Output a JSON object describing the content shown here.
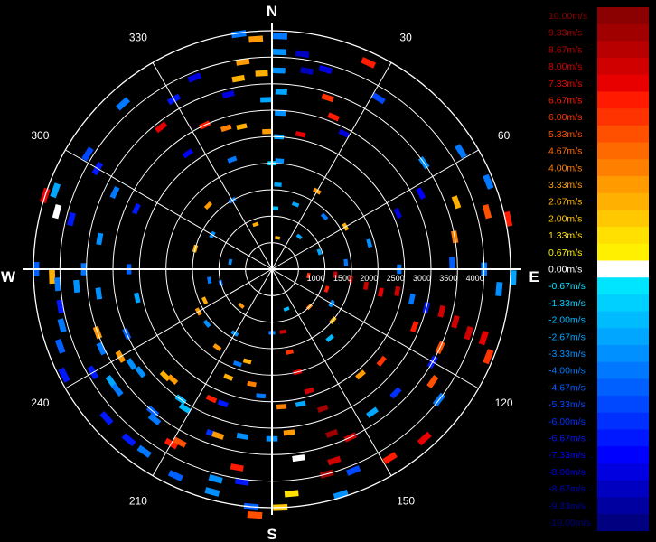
{
  "chart_data": {
    "type": "polar-radar",
    "compass": {
      "north": "N",
      "east": "E",
      "south": "S",
      "west": "W"
    },
    "azimuth_labels": [
      "30",
      "60",
      "120",
      "150",
      "210",
      "240",
      "300",
      "330"
    ],
    "azimuths_deg": [
      30,
      60,
      120,
      150,
      210,
      240,
      300,
      330
    ],
    "range_rings": [
      500,
      1000,
      1500,
      2000,
      2500,
      3000,
      3500,
      4000,
      4500
    ],
    "range_labels": [
      "1000",
      "1500",
      "2000",
      "2500",
      "3000",
      "3500",
      "4000"
    ],
    "grid": true,
    "legend_position": "right",
    "colorbar": {
      "labels": [
        "10.00m/s",
        "9.33m/s",
        "8.67m/s",
        "8.00m/s",
        "7.33m/s",
        "6.67m/s",
        "6.00m/s",
        "5.33m/s",
        "4.67m/s",
        "4.00m/s",
        "3.33m/s",
        "2.67m/s",
        "2.00m/s",
        "1.33m/s",
        "0.67m/s",
        "0.00m/s",
        "-0.67m/s",
        "-1.33m/s",
        "-2.00m/s",
        "-2.67m/s",
        "-3.33m/s",
        "-4.00m/s",
        "-4.67m/s",
        "-5.33m/s",
        "-6.00m/s",
        "-6.67m/s",
        "-7.33m/s",
        "-8.00m/s",
        "-8.67m/s",
        "-9.33m/s",
        "-10.00m/s"
      ],
      "colors": [
        "#8b0000",
        "#a00000",
        "#b80000",
        "#d00000",
        "#e80000",
        "#ff1a00",
        "#ff3300",
        "#ff5000",
        "#ff6a00",
        "#ff8000",
        "#ff9a00",
        "#ffb000",
        "#ffc800",
        "#ffe000",
        "#fff000",
        "#ffffff",
        "#00e5ff",
        "#00d0ff",
        "#00bcff",
        "#00a6ff",
        "#0090ff",
        "#0078ff",
        "#0060ff",
        "#0048ff",
        "#0030ff",
        "#0018ff",
        "#0000ff",
        "#0000e0",
        "#0000c0",
        "#0000a0",
        "#000080"
      ]
    },
    "echoes": [
      {
        "az": 2,
        "r": 4400,
        "v": -4.0
      },
      {
        "az": 2,
        "r": 4100,
        "v": -3.5
      },
      {
        "az": 2,
        "r": 3750,
        "v": -3.3
      },
      {
        "az": 3,
        "r": 3350,
        "v": -3.0
      },
      {
        "az": 3,
        "r": 2950,
        "v": -3.3
      },
      {
        "az": 3,
        "r": 2500,
        "v": -2.7
      },
      {
        "az": 4,
        "r": 2050,
        "v": -3.3
      },
      {
        "az": 4,
        "r": 1600,
        "v": -2.7
      },
      {
        "az": 3,
        "r": 1150,
        "v": -2.0
      },
      {
        "az": -2,
        "r": 3200,
        "v": -2.7
      },
      {
        "az": -2,
        "r": 2600,
        "v": 3.3
      },
      {
        "az": 0,
        "r": 2000,
        "v": -1.3
      },
      {
        "az": -4,
        "r": 4350,
        "v": 3.3
      },
      {
        "az": -3,
        "r": 3700,
        "v": 2.7
      },
      {
        "az": 8,
        "r": 4100,
        "v": -8.7
      },
      {
        "az": -8,
        "r": 4480,
        "v": -4.0
      },
      {
        "az": -8,
        "r": 3950,
        "v": 3.3
      },
      {
        "az": -10,
        "r": 3650,
        "v": 2.7
      },
      {
        "az": -14,
        "r": 3400,
        "v": -8.0
      },
      {
        "az": -12,
        "r": 2750,
        "v": 2.7
      },
      {
        "az": 15,
        "r": 3900,
        "v": -8.0
      },
      {
        "az": 18,
        "r": 3400,
        "v": 6.0
      },
      {
        "az": 22,
        "r": 3100,
        "v": 6.7
      },
      {
        "az": 25,
        "r": 4300,
        "v": 6.7
      },
      {
        "az": -22,
        "r": 3900,
        "v": -8.0
      },
      {
        "az": -25,
        "r": 3000,
        "v": 6.7
      },
      {
        "az": -30,
        "r": 3700,
        "v": -6.7
      },
      {
        "az": -18,
        "r": 2800,
        "v": 4.0
      },
      {
        "az": -20,
        "r": 2200,
        "v": -4.0
      },
      {
        "az": 10,
        "r": 3800,
        "v": -8.7
      },
      {
        "az": 12,
        "r": 2600,
        "v": 7.3
      },
      {
        "az": 28,
        "r": 2900,
        "v": -8.0
      },
      {
        "az": 32,
        "r": 3800,
        "v": -5.3
      },
      {
        "az": -38,
        "r": 3400,
        "v": 7.3
      },
      {
        "az": -42,
        "r": 4200,
        "v": -4.0
      },
      {
        "az": -36,
        "r": 2700,
        "v": -7.3
      },
      {
        "az": 55,
        "r": 3500,
        "v": -3.3
      },
      {
        "az": 58,
        "r": 4200,
        "v": -4.0
      },
      {
        "az": 70,
        "r": 3700,
        "v": 2.7
      },
      {
        "az": 68,
        "r": 4400,
        "v": -4.0
      },
      {
        "az": 75,
        "r": 4200,
        "v": 5.3
      },
      {
        "az": 78,
        "r": 4550,
        "v": 6.7
      },
      {
        "az": 80,
        "r": 3500,
        "v": 4.0
      },
      {
        "az": 63,
        "r": 3150,
        "v": -7.3
      },
      {
        "az": 66,
        "r": 2600,
        "v": -8.0
      },
      {
        "az": -60,
        "r": 3800,
        "v": -6.7
      },
      {
        "az": -58,
        "r": 4100,
        "v": -5.3
      },
      {
        "az": -64,
        "r": 3300,
        "v": -4.0
      },
      {
        "az": -70,
        "r": 4350,
        "v": -2.7
      },
      {
        "az": -72,
        "r": 4500,
        "v": 7.3
      },
      {
        "az": -75,
        "r": 4200,
        "v": 0.0
      },
      {
        "az": -76,
        "r": 3900,
        "v": -6.7
      },
      {
        "az": -66,
        "r": 2800,
        "v": -6.7
      },
      {
        "az": -80,
        "r": 3300,
        "v": -3.3
      },
      {
        "az": -270,
        "r": 4000,
        "v": -4.0
      },
      {
        "az": -272,
        "r": 3400,
        "v": -4.7
      },
      {
        "az": -270,
        "r": 2400,
        "v": -4.0
      },
      {
        "az": -90,
        "r": 4450,
        "v": -4.7
      },
      {
        "az": -90,
        "r": 3550,
        "v": -4.0
      },
      {
        "az": -90,
        "r": 2700,
        "v": -4.7
      },
      {
        "az": -92,
        "r": 4150,
        "v": 2.7
      },
      {
        "az": -95,
        "r": 3700,
        "v": -3.3
      },
      {
        "az": -100,
        "r": 4050,
        "v": -6.7
      },
      {
        "az": -110,
        "r": 4250,
        "v": -4.7
      },
      {
        "az": -115,
        "r": 3550,
        "v": -4.0
      },
      {
        "az": -120,
        "r": 3300,
        "v": 3.3
      },
      {
        "az": -125,
        "r": 3700,
        "v": -2.7
      },
      {
        "az": -128,
        "r": 3150,
        "v": -3.3
      },
      {
        "az": -135,
        "r": 2850,
        "v": 2.7
      },
      {
        "az": -140,
        "r": 4200,
        "v": -6.7
      },
      {
        "az": -142,
        "r": 3600,
        "v": -4.0
      },
      {
        "az": -150,
        "r": 3800,
        "v": 6.7
      },
      {
        "az": -155,
        "r": 2700,
        "v": 6.7
      },
      {
        "az": -160,
        "r": 3300,
        "v": -6.0
      },
      {
        "az": -165,
        "r": 4350,
        "v": -3.3
      },
      {
        "az": -172,
        "r": 4050,
        "v": -6.7
      },
      {
        "az": -175,
        "r": 4500,
        "v": -4.7
      },
      {
        "az": -176,
        "r": 4650,
        "v": 5.3
      },
      {
        "az": -170,
        "r": 3200,
        "v": -3.3
      },
      {
        "az": -145,
        "r": 3000,
        "v": -2.0
      },
      {
        "az": -158,
        "r": 2200,
        "v": 2.7
      },
      {
        "az": 95,
        "r": 1200,
        "v": 8.0
      },
      {
        "az": 97,
        "r": 1500,
        "v": 8.0
      },
      {
        "az": 100,
        "r": 1800,
        "v": 8.0
      },
      {
        "az": 102,
        "r": 2100,
        "v": 7.3
      },
      {
        "az": 100,
        "r": 2400,
        "v": 8.0
      },
      {
        "az": 102,
        "r": 2700,
        "v": -4.0
      },
      {
        "az": 104,
        "r": 3000,
        "v": -6.7
      },
      {
        "az": 104,
        "r": 3300,
        "v": 8.0
      },
      {
        "az": 106,
        "r": 3600,
        "v": 8.0
      },
      {
        "az": 108,
        "r": 3900,
        "v": 8.0
      },
      {
        "az": 108,
        "r": 4200,
        "v": 7.3
      },
      {
        "az": 95,
        "r": 4300,
        "v": -3.3
      },
      {
        "az": 92,
        "r": 4550,
        "v": -2.7
      },
      {
        "az": 112,
        "r": 2900,
        "v": 6.7
      },
      {
        "az": 115,
        "r": 3500,
        "v": 5.3
      },
      {
        "az": 112,
        "r": 4400,
        "v": 6.0
      },
      {
        "az": 120,
        "r": 3500,
        "v": -6.7
      },
      {
        "az": 125,
        "r": 3700,
        "v": 5.3
      },
      {
        "az": 130,
        "r": 2700,
        "v": 6.0
      },
      {
        "az": 128,
        "r": 4000,
        "v": -4.0
      },
      {
        "az": 135,
        "r": 3300,
        "v": -6.0
      },
      {
        "az": 138,
        "r": 4300,
        "v": 7.3
      },
      {
        "az": 140,
        "r": 2600,
        "v": 3.3
      },
      {
        "az": 145,
        "r": 3300,
        "v": -2.7
      },
      {
        "az": 148,
        "r": 4200,
        "v": 6.7
      },
      {
        "az": 155,
        "r": 3500,
        "v": 8.0
      },
      {
        "az": 158,
        "r": 4100,
        "v": -5.3
      },
      {
        "az": 160,
        "r": 2800,
        "v": 9.3
      },
      {
        "az": 160,
        "r": 3300,
        "v": 9.3
      },
      {
        "az": 162,
        "r": 3800,
        "v": 8.0
      },
      {
        "az": 163,
        "r": 4450,
        "v": -3.3
      },
      {
        "az": 165,
        "r": 4000,
        "v": 9.3
      },
      {
        "az": 163,
        "r": 2400,
        "v": 8.0
      },
      {
        "az": 166,
        "r": 2000,
        "v": 7.3
      },
      {
        "az": 168,
        "r": 1600,
        "v": 6.0
      },
      {
        "az": 170,
        "r": 1200,
        "v": 8.0
      },
      {
        "az": 172,
        "r": 3600,
        "v": 0.0
      },
      {
        "az": 174,
        "r": 3100,
        "v": 3.3
      },
      {
        "az": 175,
        "r": 4250,
        "v": 1.3
      },
      {
        "az": 168,
        "r": 2600,
        "v": -2.7
      },
      {
        "az": 176,
        "r": 2600,
        "v": 4.0
      },
      {
        "az": 178,
        "r": 4500,
        "v": 2.0
      },
      {
        "az": 180,
        "r": 3200,
        "v": -3.3
      },
      {
        "az": 185,
        "r": 2400,
        "v": -4.0
      },
      {
        "az": 190,
        "r": 3800,
        "v": 6.7
      },
      {
        "az": 195,
        "r": 4100,
        "v": -3.3
      },
      {
        "az": 198,
        "r": 3300,
        "v": 3.3
      },
      {
        "az": 200,
        "r": 2700,
        "v": -6.7
      },
      {
        "az": 205,
        "r": 4300,
        "v": -4.7
      },
      {
        "az": 208,
        "r": 3700,
        "v": 5.3
      },
      {
        "az": 212,
        "r": 3100,
        "v": -2.0
      },
      {
        "az": 215,
        "r": 4200,
        "v": -4.0
      },
      {
        "az": 220,
        "r": 3500,
        "v": -4.7
      },
      {
        "az": 222,
        "r": 2800,
        "v": 3.3
      },
      {
        "az": 228,
        "r": 4200,
        "v": -6.7
      },
      {
        "az": 232,
        "r": 3700,
        "v": -4.0
      },
      {
        "az": 236,
        "r": 3200,
        "v": -3.3
      },
      {
        "az": 240,
        "r": 3900,
        "v": -6.7
      },
      {
        "az": 243,
        "r": 4400,
        "v": -6.7
      },
      {
        "az": 246,
        "r": 3000,
        "v": -4.7
      },
      {
        "az": 250,
        "r": 3500,
        "v": 3.3
      },
      {
        "az": 255,
        "r": 4100,
        "v": -4.0
      },
      {
        "az": 258,
        "r": 2600,
        "v": -2.7
      },
      {
        "az": 262,
        "r": 3300,
        "v": -3.3
      },
      {
        "az": 266,
        "r": 4050,
        "v": -4.0
      },
      {
        "az": 190,
        "r": 2200,
        "v": 4.0
      },
      {
        "az": 200,
        "r": 1900,
        "v": -4.0
      },
      {
        "az": 215,
        "r": 1800,
        "v": 3.3
      },
      {
        "az": 230,
        "r": 1600,
        "v": -3.3
      },
      {
        "az": 245,
        "r": 1400,
        "v": 2.7
      },
      {
        "az": 140,
        "r": 1700,
        "v": -2.0
      },
      {
        "az": 130,
        "r": 1500,
        "v": 2.7
      },
      {
        "az": 120,
        "r": 1300,
        "v": -3.3
      },
      {
        "az": 110,
        "r": 1100,
        "v": 6.7
      },
      {
        "az": 85,
        "r": 1400,
        "v": -4.0
      },
      {
        "az": 75,
        "r": 1900,
        "v": -3.3
      },
      {
        "az": 60,
        "r": 1600,
        "v": 2.7
      },
      {
        "az": 45,
        "r": 1400,
        "v": -4.0
      },
      {
        "az": 30,
        "r": 1700,
        "v": 3.3
      },
      {
        "az": 20,
        "r": 1300,
        "v": -2.7
      },
      {
        "az": -30,
        "r": 1500,
        "v": -4.0
      },
      {
        "az": -45,
        "r": 1700,
        "v": 3.3
      },
      {
        "az": -60,
        "r": 1300,
        "v": -3.3
      },
      {
        "az": -75,
        "r": 1500,
        "v": 2.7
      },
      {
        "az": -100,
        "r": 1200,
        "v": -4.0
      },
      {
        "az": -120,
        "r": 1600,
        "v": 3.3
      },
      {
        "az": -150,
        "r": 1400,
        "v": -3.3
      },
      {
        "az": -165,
        "r": 1800,
        "v": 2.7
      },
      {
        "az": -180,
        "r": 1200,
        "v": -4.0
      },
      {
        "az": -20,
        "r": 900,
        "v": 2.7
      },
      {
        "az": 40,
        "r": 800,
        "v": -2.7
      },
      {
        "az": 100,
        "r": 700,
        "v": 6.0
      },
      {
        "az": 160,
        "r": 800,
        "v": -2.0
      },
      {
        "az": -140,
        "r": 900,
        "v": 3.3
      },
      {
        "az": -80,
        "r": 800,
        "v": -3.3
      },
      {
        "az": 10,
        "r": 600,
        "v": 2.7
      },
      {
        "az": 70,
        "r": 950,
        "v": -2.7
      },
      {
        "az": 135,
        "r": 1000,
        "v": 4.0
      },
      {
        "az": -105,
        "r": 1000,
        "v": -4.7
      }
    ]
  }
}
